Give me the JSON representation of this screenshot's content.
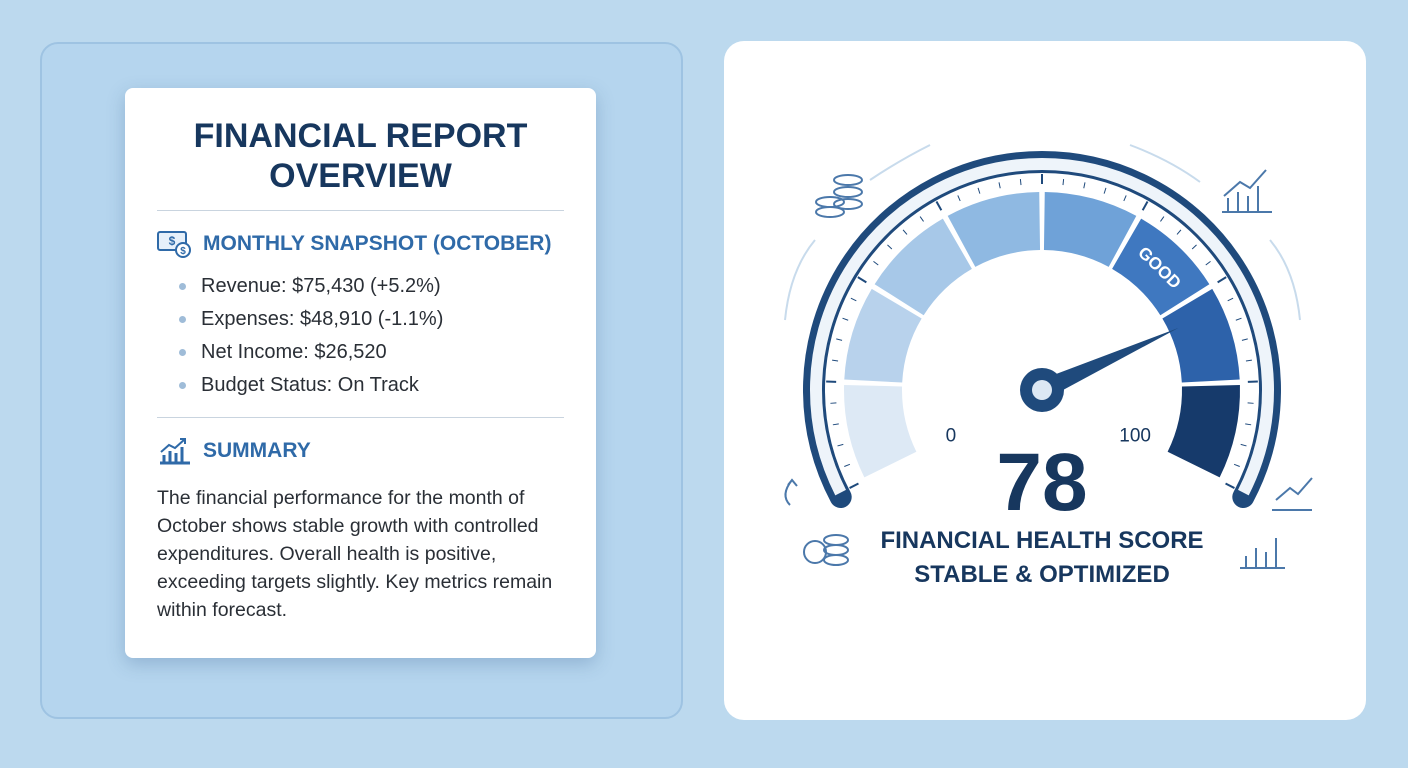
{
  "report": {
    "title": "FINANCIAL REPORT OVERVIEW",
    "snapshot": {
      "heading": "MONTHLY SNAPSHOT (OCTOBER)",
      "items": [
        "Revenue: $75,430 (+5.2%)",
        "Expenses: $48,910 (-1.1%)",
        "Net Income: $26,520",
        "Budget Status: On Track"
      ]
    },
    "summary": {
      "heading": "SUMMARY",
      "text": "The financial performance for the month of October shows stable growth with controlled expenditures. Overall health is positive, exceeding targets slightly. Key metrics remain within forecast."
    }
  },
  "gauge": {
    "min": 0,
    "max": 100,
    "value": 78,
    "zone_label": "GOOD",
    "title": "FINANCIAL HEALTH SCORE",
    "subtitle": "STABLE & OPTIMIZED"
  }
}
